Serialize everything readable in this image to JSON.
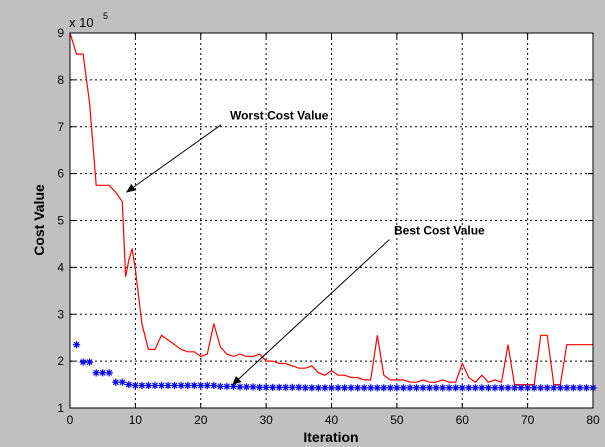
{
  "chart_data": {
    "type": "line",
    "title": "",
    "xlabel": "Iteration",
    "ylabel": "Cost Value",
    "y_multiplier": "x 10",
    "y_multiplier_exp": "5",
    "xlim": [
      0,
      80
    ],
    "ylim": [
      1,
      9
    ],
    "xticks": [
      0,
      10,
      20,
      30,
      40,
      50,
      60,
      70,
      80
    ],
    "yticks": [
      1,
      2,
      3,
      4,
      5,
      6,
      7,
      8,
      9
    ],
    "grid": true,
    "colors": {
      "figure_bg": "#c0c0c0",
      "axes_bg": "#ffffff",
      "worst": "#ff0000",
      "best": "#0000ff",
      "grid": "#000000"
    },
    "series": [
      {
        "name": "Worst Cost Value",
        "style": "line",
        "x": [
          0,
          1,
          2,
          3,
          4,
          5,
          6,
          7,
          8,
          8.5,
          9,
          9.5,
          10,
          11,
          12,
          13,
          14,
          15,
          16,
          17,
          18,
          19,
          20,
          21,
          22,
          23,
          24,
          25,
          26,
          27,
          28,
          29,
          30,
          31,
          32,
          33,
          34,
          35,
          36,
          37,
          38,
          39,
          40,
          41,
          42,
          43,
          44,
          45,
          46,
          47,
          48,
          49,
          50,
          51,
          52,
          53,
          54,
          55,
          56,
          57,
          58,
          59,
          60,
          61,
          62,
          63,
          64,
          65,
          66,
          67,
          68,
          69,
          70,
          71,
          72,
          73,
          74,
          75,
          76,
          77,
          78,
          79,
          80
        ],
        "values": [
          9.0,
          8.55,
          8.55,
          7.5,
          5.75,
          5.75,
          5.75,
          5.6,
          5.4,
          3.8,
          4.15,
          4.4,
          3.95,
          2.8,
          2.25,
          2.25,
          2.55,
          2.45,
          2.35,
          2.25,
          2.2,
          2.2,
          2.1,
          2.15,
          2.8,
          2.3,
          2.15,
          2.1,
          2.15,
          2.1,
          2.1,
          2.15,
          2.0,
          2.0,
          1.95,
          1.95,
          1.9,
          1.85,
          1.85,
          1.9,
          1.75,
          1.7,
          1.8,
          1.7,
          1.7,
          1.65,
          1.65,
          1.6,
          1.6,
          2.55,
          1.7,
          1.6,
          1.6,
          1.6,
          1.55,
          1.55,
          1.6,
          1.55,
          1.55,
          1.6,
          1.55,
          1.55,
          1.95,
          1.65,
          1.55,
          1.7,
          1.55,
          1.6,
          1.55,
          2.35,
          1.5,
          1.5,
          1.5,
          1.5,
          2.55,
          2.55,
          1.5,
          1.5,
          2.35,
          2.35,
          2.35,
          2.35,
          2.35
        ]
      },
      {
        "name": "Best Cost Value",
        "style": "marker",
        "x": [
          1,
          2,
          3,
          4,
          5,
          6,
          7,
          8,
          9,
          10,
          11,
          12,
          13,
          14,
          15,
          16,
          17,
          18,
          19,
          20,
          21,
          22,
          23,
          24,
          25,
          26,
          27,
          28,
          29,
          30,
          31,
          32,
          33,
          34,
          35,
          36,
          37,
          38,
          39,
          40,
          41,
          42,
          43,
          44,
          45,
          46,
          47,
          48,
          49,
          50,
          51,
          52,
          53,
          54,
          55,
          56,
          57,
          58,
          59,
          60,
          61,
          62,
          63,
          64,
          65,
          66,
          67,
          68,
          69,
          70,
          71,
          72,
          73,
          74,
          75,
          76,
          77,
          78,
          79,
          80
        ],
        "values": [
          2.35,
          1.98,
          1.98,
          1.75,
          1.75,
          1.75,
          1.55,
          1.55,
          1.5,
          1.48,
          1.48,
          1.48,
          1.48,
          1.48,
          1.48,
          1.48,
          1.48,
          1.48,
          1.48,
          1.48,
          1.48,
          1.48,
          1.46,
          1.46,
          1.46,
          1.45,
          1.45,
          1.45,
          1.44,
          1.44,
          1.44,
          1.44,
          1.44,
          1.44,
          1.44,
          1.43,
          1.43,
          1.43,
          1.43,
          1.43,
          1.43,
          1.43,
          1.43,
          1.43,
          1.43,
          1.43,
          1.43,
          1.43,
          1.43,
          1.43,
          1.43,
          1.43,
          1.43,
          1.43,
          1.43,
          1.43,
          1.43,
          1.43,
          1.43,
          1.43,
          1.43,
          1.43,
          1.43,
          1.43,
          1.43,
          1.43,
          1.43,
          1.43,
          1.43,
          1.43,
          1.43,
          1.43,
          1.43,
          1.43,
          1.43,
          1.43,
          1.43,
          1.43,
          1.43,
          1.43
        ]
      }
    ],
    "annotations": [
      {
        "text": "Worst Cost Value",
        "x": 32,
        "y": 7.15,
        "arrow_to": [
          8.6,
          5.6
        ]
      },
      {
        "text": "Best Cost Value",
        "x": 56.5,
        "y": 4.7,
        "arrow_to": [
          24.8,
          1.49
        ]
      }
    ]
  }
}
